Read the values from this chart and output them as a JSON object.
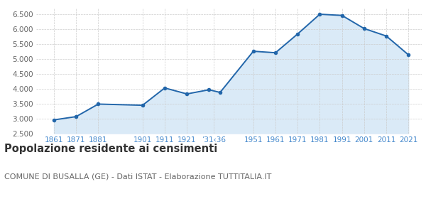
{
  "years": [
    1861,
    1871,
    1881,
    1901,
    1911,
    1921,
    1931,
    1936,
    1951,
    1961,
    1971,
    1981,
    1991,
    2001,
    2011,
    2021
  ],
  "population": [
    2950,
    3060,
    3480,
    3440,
    4020,
    3820,
    3960,
    3870,
    5250,
    5200,
    5830,
    6490,
    6450,
    6010,
    5760,
    5130
  ],
  "ylim": [
    2500,
    6700
  ],
  "yticks": [
    2500,
    3000,
    3500,
    4000,
    4500,
    5000,
    5500,
    6000,
    6500
  ],
  "x_tick_positions": [
    1861,
    1871,
    1881,
    1901,
    1911,
    1921,
    1933,
    1951,
    1961,
    1971,
    1981,
    1991,
    2001,
    2011,
    2021
  ],
  "x_tick_labels": [
    "1861",
    "1871",
    "1881",
    "1901",
    "1911",
    "1921",
    "’31‹36",
    "1951",
    "1961",
    "1971",
    "1981",
    "1991",
    "2001",
    "2011",
    "2021"
  ],
  "xlim_left": 1853,
  "xlim_right": 2027,
  "line_color": "#2266aa",
  "fill_color": "#daeaf7",
  "marker_color": "#2266aa",
  "grid_color": "#cccccc",
  "bg_color": "#ffffff",
  "title": "Popolazione residente ai censimenti",
  "title_fontsize": 10.5,
  "subtitle": "COMUNE DI BUSALLA (GE) - Dati ISTAT - Elaborazione TUTTITALIA.IT",
  "subtitle_fontsize": 8,
  "tick_label_color": "#4488cc",
  "ytick_label_color": "#666666",
  "tick_label_fontsize": 7.5
}
